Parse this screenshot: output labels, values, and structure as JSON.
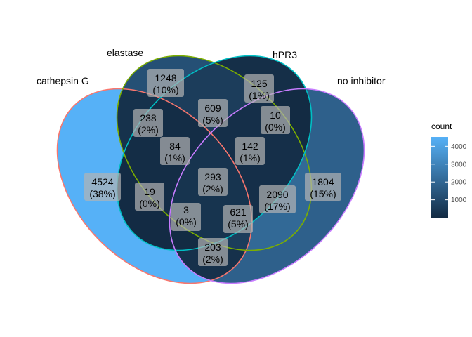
{
  "chart_data": {
    "type": "venn",
    "sets": [
      {
        "name": "cathepsin G",
        "outline_color": "#F8766D"
      },
      {
        "name": "elastase",
        "outline_color": "#7CAE00"
      },
      {
        "name": "hPR3",
        "outline_color": "#00BFC4"
      },
      {
        "name": "no inhibitor",
        "outline_color": "#C77CFF"
      }
    ],
    "regions": [
      {
        "id": "A",
        "sets": [
          "cathepsin G"
        ],
        "count": "4524",
        "pct": "(38%)",
        "value": 4524
      },
      {
        "id": "B",
        "sets": [
          "elastase"
        ],
        "count": "1248",
        "pct": "(10%)",
        "value": 1248
      },
      {
        "id": "C",
        "sets": [
          "hPR3"
        ],
        "count": "125",
        "pct": "(1%)",
        "value": 125
      },
      {
        "id": "D",
        "sets": [
          "no inhibitor"
        ],
        "count": "1804",
        "pct": "(15%)",
        "value": 1804
      },
      {
        "id": "AB",
        "sets": [
          "cathepsin G",
          "elastase"
        ],
        "count": "238",
        "pct": "(2%)",
        "value": 238
      },
      {
        "id": "BC",
        "sets": [
          "elastase",
          "hPR3"
        ],
        "count": "609",
        "pct": "(5%)",
        "value": 609
      },
      {
        "id": "CD",
        "sets": [
          "hPR3",
          "no inhibitor"
        ],
        "count": "10",
        "pct": "(0%)",
        "value": 10
      },
      {
        "id": "ABC",
        "sets": [
          "cathepsin G",
          "elastase",
          "hPR3"
        ],
        "count": "84",
        "pct": "(1%)",
        "value": 84
      },
      {
        "id": "BCD",
        "sets": [
          "elastase",
          "hPR3",
          "no inhibitor"
        ],
        "count": "142",
        "pct": "(1%)",
        "value": 142
      },
      {
        "id": "ABCD",
        "sets": [
          "cathepsin G",
          "elastase",
          "hPR3",
          "no inhibitor"
        ],
        "count": "293",
        "pct": "(2%)",
        "value": 293
      },
      {
        "id": "AC",
        "sets": [
          "cathepsin G",
          "hPR3"
        ],
        "count": "19",
        "pct": "(0%)",
        "value": 19
      },
      {
        "id": "BD",
        "sets": [
          "elastase",
          "no inhibitor"
        ],
        "count": "2090",
        "pct": "(17%)",
        "value": 2090
      },
      {
        "id": "ACD",
        "sets": [
          "cathepsin G",
          "hPR3",
          "no inhibitor"
        ],
        "count": "3",
        "pct": "(0%)",
        "value": 3
      },
      {
        "id": "ABD",
        "sets": [
          "cathepsin G",
          "elastase",
          "no inhibitor"
        ],
        "count": "621",
        "pct": "(5%)",
        "value": 621
      },
      {
        "id": "AD",
        "sets": [
          "cathepsin G",
          "no inhibitor"
        ],
        "count": "203",
        "pct": "(2%)",
        "value": 203
      }
    ],
    "legend": {
      "title": "count",
      "ticks": [
        "1000",
        "2000",
        "3000",
        "4000"
      ],
      "tick_values": [
        1000,
        2000,
        3000,
        4000
      ],
      "range": [
        3,
        4524
      ],
      "low_color": "#132B43",
      "high_color": "#56B1F7",
      "placement": "right"
    }
  }
}
